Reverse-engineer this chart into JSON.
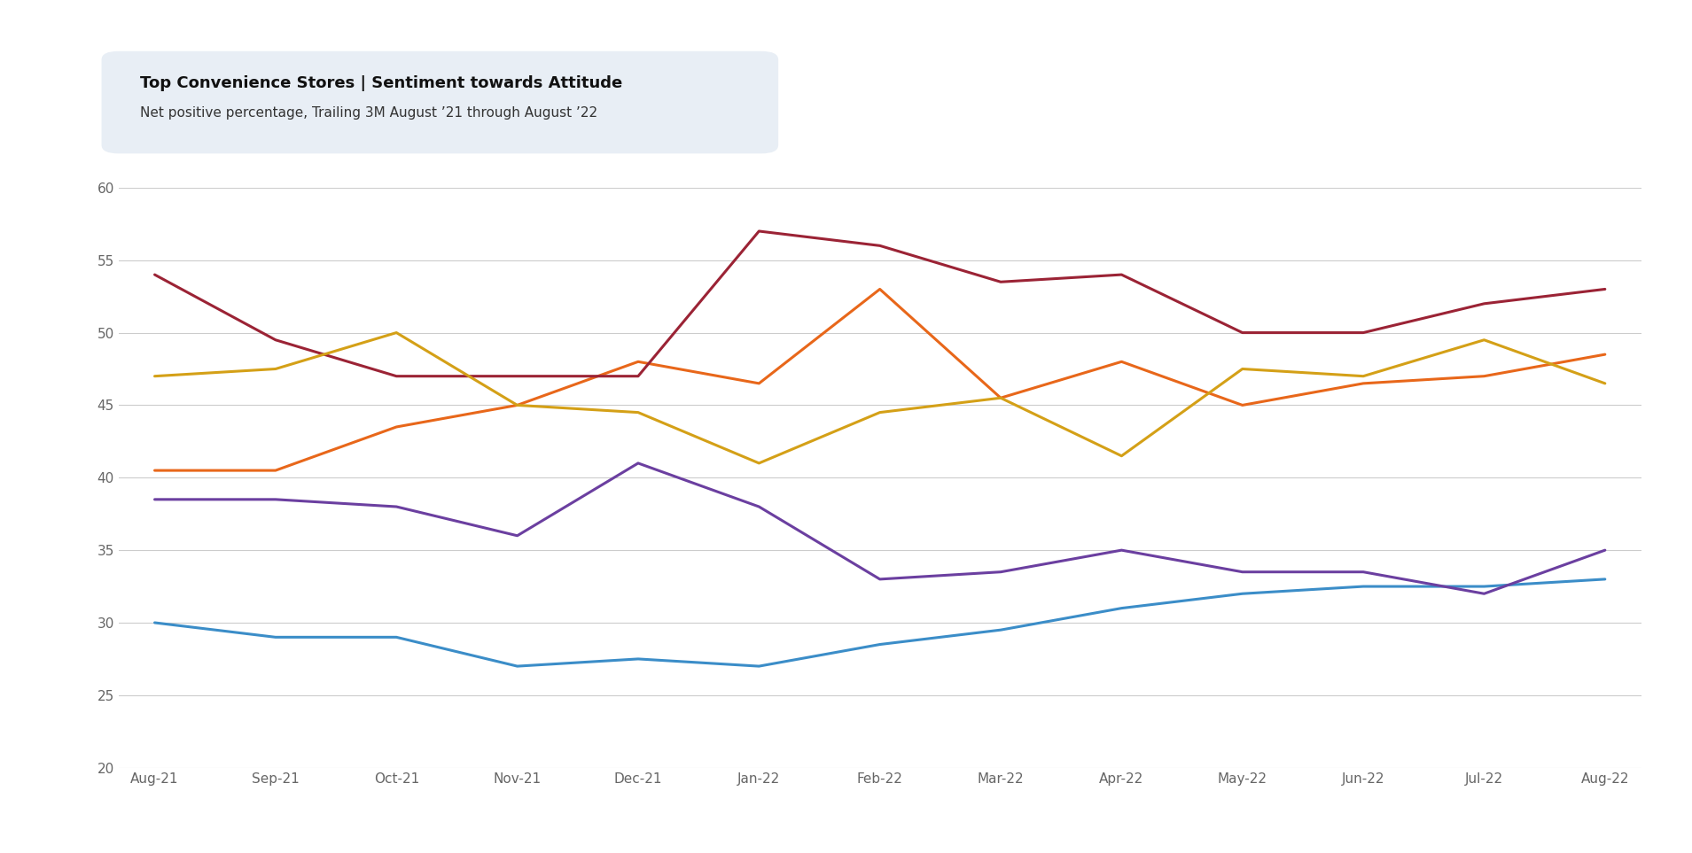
{
  "title_bold": "Top Convenience Stores | Sentiment towards Attitude",
  "title_sub": "Net positive percentage, Trailing 3M August ’21 through August ’22",
  "x_labels": [
    "Aug-21",
    "Sep-21",
    "Oct-21",
    "Nov-21",
    "Dec-21",
    "Jan-22",
    "Feb-22",
    "Mar-22",
    "Apr-22",
    "May-22",
    "Jun-22",
    "Jul-22",
    "Aug-22"
  ],
  "series": {
    "C-Stores": [
      30.0,
      29.0,
      29.0,
      27.0,
      27.5,
      27.0,
      28.5,
      29.5,
      31.0,
      32.0,
      32.5,
      32.5,
      33.0
    ],
    "Kwik Trip": [
      40.5,
      40.5,
      43.5,
      45.0,
      48.0,
      46.5,
      53.0,
      45.5,
      48.0,
      45.0,
      46.5,
      47.0,
      48.5
    ],
    "QuikTrip (QT)": [
      54.0,
      49.5,
      47.0,
      47.0,
      47.0,
      57.0,
      56.0,
      53.5,
      54.0,
      50.0,
      50.0,
      52.0,
      53.0
    ],
    "Sheetz": [
      38.5,
      38.5,
      38.0,
      36.0,
      41.0,
      38.0,
      33.0,
      33.5,
      35.0,
      33.5,
      33.5,
      32.0,
      35.0
    ],
    "Wawa": [
      47.0,
      47.5,
      50.0,
      45.0,
      44.5,
      41.0,
      44.5,
      45.5,
      41.5,
      47.5,
      47.0,
      49.5,
      46.5
    ]
  },
  "colors": {
    "C-Stores": "#3B8DC8",
    "Kwik Trip": "#E8671A",
    "QuikTrip (QT)": "#9B2335",
    "Sheetz": "#6B3FA0",
    "Wawa": "#D4A017"
  },
  "ylim": [
    20,
    60
  ],
  "yticks": [
    20,
    25,
    30,
    35,
    40,
    45,
    50,
    55,
    60
  ],
  "background_color": "#ffffff",
  "grid_color": "#cccccc",
  "textbox_color": "#e8eef5",
  "title_fontsize": 13,
  "sub_fontsize": 11,
  "tick_fontsize": 11,
  "legend_fontsize": 11,
  "line_width": 2.2
}
